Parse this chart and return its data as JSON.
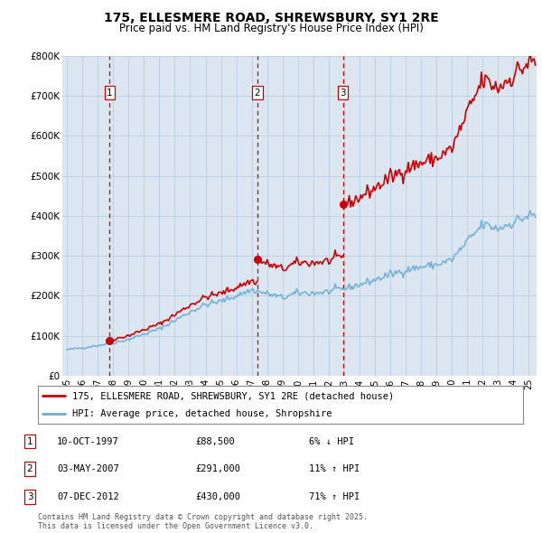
{
  "title_line1": "175, ELLESMERE ROAD, SHREWSBURY, SY1 2RE",
  "title_line2": "Price paid vs. HM Land Registry's House Price Index (HPI)",
  "plot_bg_color": "#dce6f1",
  "ylim": [
    0,
    800000
  ],
  "yticks": [
    0,
    100000,
    200000,
    300000,
    400000,
    500000,
    600000,
    700000,
    800000
  ],
  "ytick_labels": [
    "£0",
    "£100K",
    "£200K",
    "£300K",
    "£400K",
    "£500K",
    "£600K",
    "£700K",
    "£800K"
  ],
  "sale_dates": [
    1997.78,
    2007.37,
    2012.92
  ],
  "sale_prices": [
    88500,
    291000,
    430000
  ],
  "sale_labels": [
    "1",
    "2",
    "3"
  ],
  "legend_line1": "175, ELLESMERE ROAD, SHREWSBURY, SY1 2RE (detached house)",
  "legend_line2": "HPI: Average price, detached house, Shropshire",
  "table_data": [
    [
      "1",
      "10-OCT-1997",
      "£88,500",
      "6% ↓ HPI"
    ],
    [
      "2",
      "03-MAY-2007",
      "£291,000",
      "11% ↑ HPI"
    ],
    [
      "3",
      "07-DEC-2012",
      "£430,000",
      "71% ↑ HPI"
    ]
  ],
  "footer": "Contains HM Land Registry data © Crown copyright and database right 2025.\nThis data is licensed under the Open Government Licence v3.0.",
  "hpi_color": "#6baed6",
  "sale_line_color": "#cc0000",
  "vline_color": "#cc0000",
  "grid_color": "#b8cfe0",
  "xlim_start": 1994.7,
  "xlim_end": 2025.5
}
